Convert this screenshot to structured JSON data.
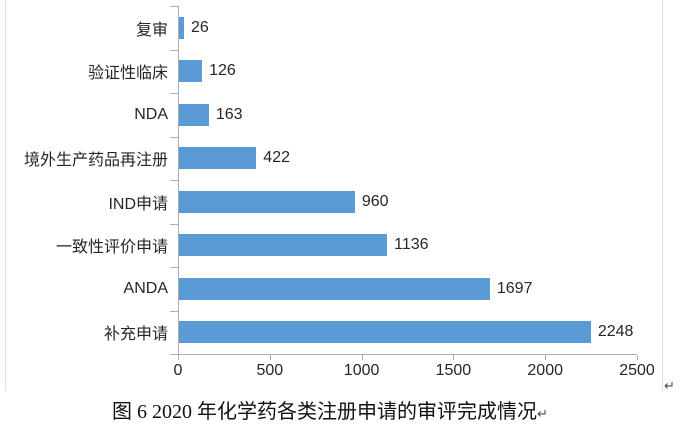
{
  "chart_data": {
    "type": "bar",
    "orientation": "horizontal",
    "categories": [
      "复审",
      "验证性临床",
      "NDA",
      "境外生产药品再注册",
      "IND申请",
      "一致性评价申请",
      "ANDA",
      "补充申请"
    ],
    "values": [
      26,
      126,
      163,
      422,
      960,
      1136,
      1697,
      2248
    ],
    "xlim": [
      0,
      2500
    ],
    "x_ticks": [
      0,
      500,
      1000,
      1500,
      2000,
      2500
    ],
    "data_labels_shown": true,
    "grid": false,
    "legend": false,
    "bar_color": "#5B9BD5",
    "axis_color": "#ACACAC",
    "text_color": "#262626"
  },
  "caption": {
    "text": "图 6  2020 年化学药各类注册申请的审评完成情况",
    "paragraph_mark": "↵"
  },
  "marks": {
    "after_chart_paragraph_mark": "↵"
  }
}
